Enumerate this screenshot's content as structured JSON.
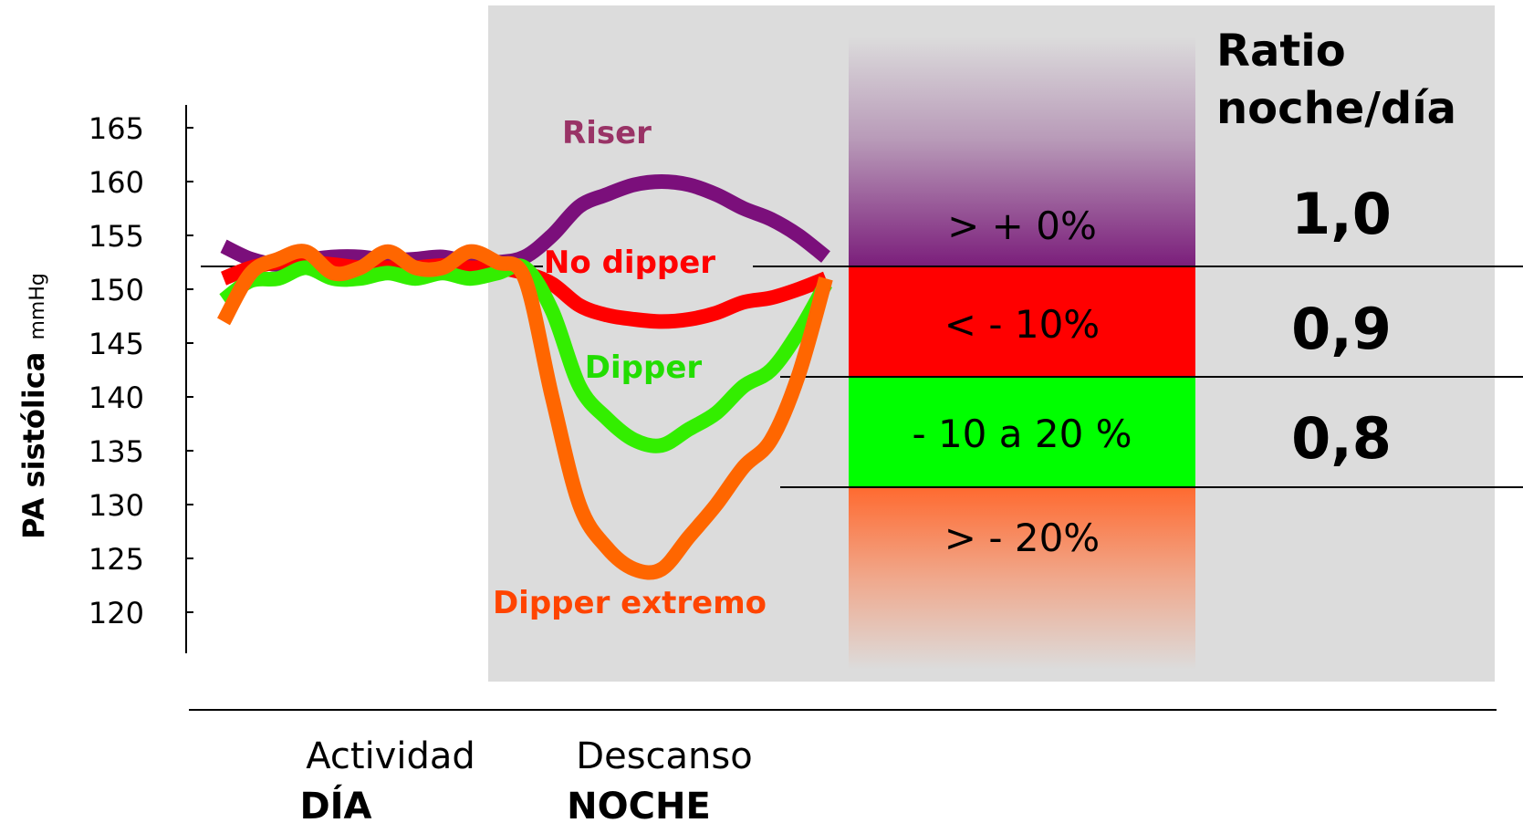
{
  "chart_data": {
    "type": "line",
    "ylabel": "PA sistólica",
    "ylabel_unit": "mmHg",
    "ylim": [
      120,
      165
    ],
    "yticks": [
      "165",
      "160",
      "155",
      "150",
      "145",
      "140",
      "135",
      "130",
      "125",
      "120"
    ],
    "x_labels": {
      "activity": "Actividad",
      "day": "DÍA",
      "rest": "Descanso",
      "night": "NOCHE"
    },
    "series": [
      {
        "name": "Riser",
        "color": "#7B0F7B",
        "label_color": "#993366",
        "y": [
          154,
          152.8,
          152.3,
          152.7,
          153.0,
          153.0,
          152.7,
          152.8,
          153.0,
          152.5,
          152.5,
          153.0,
          155.0,
          157.7,
          158.8,
          159.7,
          160.0,
          159.7,
          158.8,
          157.5,
          156.5,
          155.0,
          153.0
        ]
      },
      {
        "name": "No dipper",
        "color": "#FF0000",
        "label_color": "#FF0000",
        "y": [
          151.0,
          152.0,
          152.5,
          152.5,
          152.3,
          152.0,
          152.0,
          152.0,
          152.2,
          152.0,
          152.0,
          151.5,
          150.5,
          148.5,
          147.6,
          147.2,
          147.0,
          147.2,
          147.8,
          148.8,
          149.2,
          150.0,
          151.0
        ]
      },
      {
        "name": "Dipper",
        "color": "#33EE00",
        "label_color": "#22DD00",
        "y": [
          149.0,
          150.8,
          151.0,
          152.0,
          151.0,
          151.0,
          151.5,
          151.0,
          151.5,
          151.0,
          151.5,
          152.0,
          148.0,
          141.0,
          138.0,
          136.0,
          135.5,
          137.0,
          138.5,
          141.0,
          142.5,
          146.0,
          150.5
        ]
      },
      {
        "name": "Dipper extremo",
        "color": "#FF6600",
        "label_color": "#FF4400",
        "y": [
          147.0,
          151.5,
          152.8,
          153.5,
          151.5,
          152.0,
          153.5,
          152.0,
          152.0,
          153.5,
          152.5,
          151.0,
          140.0,
          130.0,
          126.0,
          124.0,
          124.0,
          127.0,
          130.0,
          133.5,
          136.0,
          142.0,
          151.0
        ]
      }
    ],
    "categories_panel": {
      "title_line1": "Ratio",
      "title_line2": "noche/día",
      "bands": [
        {
          "label": "> + 0%",
          "color": "#7B1E7B",
          "ratio": "1,0"
        },
        {
          "label": "< - 10%",
          "color": "#FF0000",
          "ratio": "0,9"
        },
        {
          "label": "- 10 a 20 %",
          "color": "#00FF00",
          "ratio": "0,8"
        },
        {
          "label": "> - 20%",
          "color": "#FF6A30",
          "ratio": ""
        }
      ]
    },
    "night_shading_color": "#DCDCDC",
    "grid": false
  }
}
